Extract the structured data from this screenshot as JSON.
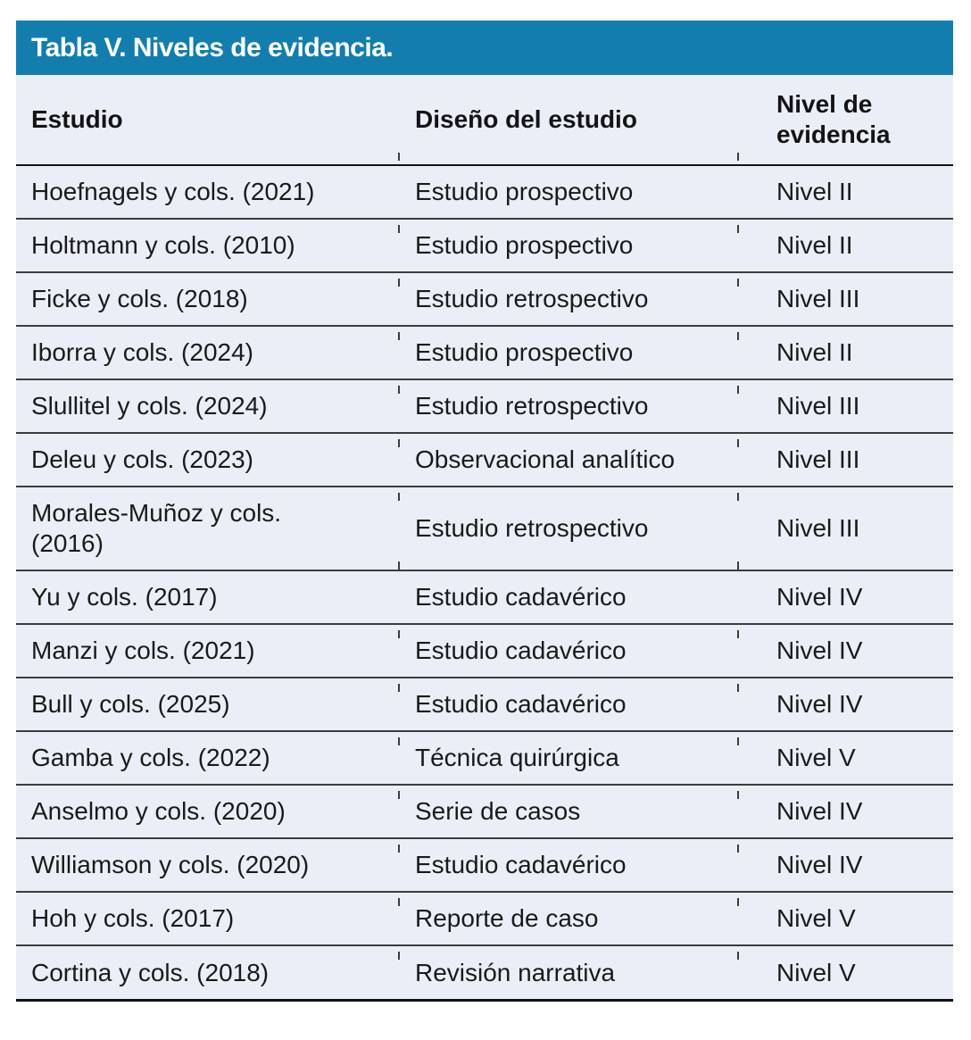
{
  "table": {
    "title": "Tabla V. Niveles de evidencia.",
    "columns": {
      "estudio": "Estudio",
      "diseno": "Diseño del estudio",
      "nivel": "Nivel de evidencia"
    },
    "rows": [
      {
        "estudio": "Hoefnagels y cols. (2021)",
        "diseno": "Estudio prospectivo",
        "nivel": "Nivel II"
      },
      {
        "estudio": "Holtmann y cols. (2010)",
        "diseno": "Estudio prospectivo",
        "nivel": "Nivel II"
      },
      {
        "estudio": "Ficke y cols. (2018)",
        "diseno": "Estudio retrospectivo",
        "nivel": "Nivel III"
      },
      {
        "estudio": "Iborra y cols. (2024)",
        "diseno": "Estudio prospectivo",
        "nivel": "Nivel II"
      },
      {
        "estudio": "Slullitel y cols. (2024)",
        "diseno": "Estudio retrospectivo",
        "nivel": "Nivel III"
      },
      {
        "estudio": "Deleu y cols. (2023)",
        "diseno": "Observacional analítico",
        "nivel": "Nivel III"
      },
      {
        "estudio": "Morales-Muñoz y cols.\n(2016)",
        "diseno": "Estudio retrospectivo",
        "nivel": "Nivel III"
      },
      {
        "estudio": "Yu y cols. (2017)",
        "diseno": "Estudio cadavérico",
        "nivel": "Nivel IV"
      },
      {
        "estudio": "Manzi y cols. (2021)",
        "diseno": "Estudio cadavérico",
        "nivel": "Nivel IV"
      },
      {
        "estudio": "Bull y cols. (2025)",
        "diseno": "Estudio cadavérico",
        "nivel": "Nivel IV"
      },
      {
        "estudio": "Gamba y cols. (2022)",
        "diseno": "Técnica quirúrgica",
        "nivel": "Nivel V"
      },
      {
        "estudio": "Anselmo y cols. (2020)",
        "diseno": "Serie de casos",
        "nivel": "Nivel IV"
      },
      {
        "estudio": "Williamson y cols. (2020)",
        "diseno": "Estudio cadavérico",
        "nivel": "Nivel IV"
      },
      {
        "estudio": "Hoh y cols. (2017)",
        "diseno": "Reporte de caso",
        "nivel": "Nivel V"
      },
      {
        "estudio": "Cortina y cols. (2018)",
        "diseno": "Revisión narrativa",
        "nivel": "Nivel V"
      }
    ]
  },
  "colors": {
    "title_bar_bg": "#137EAE",
    "title_text": "#FFFFFF",
    "body_bg": "#EAEFF7",
    "text": "#1A1A1A",
    "heavy_line": "#141414",
    "separator_line": "#3C3C3C",
    "page_bg": "#FFFFFF"
  }
}
